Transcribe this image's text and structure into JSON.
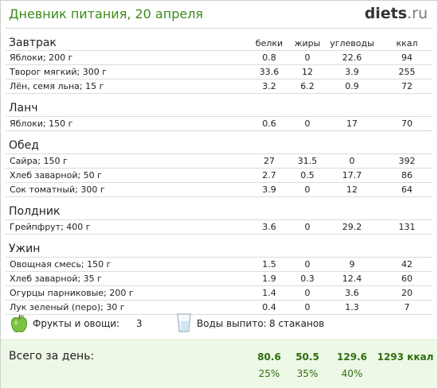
{
  "header": {
    "title": "Дневник питания, 20 апреля",
    "logo_main": "diets",
    "logo_tld": ".ru"
  },
  "columns": {
    "protein": "белки",
    "fat": "жиры",
    "carbs": "углеводы",
    "kcal": "ккал"
  },
  "meals": [
    {
      "name": "Завтрак",
      "items": [
        {
          "food": "Яблоки; 200 г",
          "protein": "0.8",
          "fat": "0",
          "carbs": "22.6",
          "kcal": "94"
        },
        {
          "food": "Творог мягкий; 300 г",
          "protein": "33.6",
          "fat": "12",
          "carbs": "3.9",
          "kcal": "255"
        },
        {
          "food": "Лён, семя льна; 15 г",
          "protein": "3.2",
          "fat": "6.2",
          "carbs": "0.9",
          "kcal": "72"
        }
      ]
    },
    {
      "name": "Ланч",
      "items": [
        {
          "food": "Яблоки; 150 г",
          "protein": "0.6",
          "fat": "0",
          "carbs": "17",
          "kcal": "70"
        }
      ]
    },
    {
      "name": "Обед",
      "items": [
        {
          "food": "Сайра; 150 г",
          "protein": "27",
          "fat": "31.5",
          "carbs": "0",
          "kcal": "392"
        },
        {
          "food": "Хлеб заварной; 50 г",
          "protein": "2.7",
          "fat": "0.5",
          "carbs": "17.7",
          "kcal": "86"
        },
        {
          "food": "Сок томатный; 300 г",
          "protein": "3.9",
          "fat": "0",
          "carbs": "12",
          "kcal": "64"
        }
      ]
    },
    {
      "name": "Полдник",
      "items": [
        {
          "food": "Грейпфрут; 400 г",
          "protein": "3.6",
          "fat": "0",
          "carbs": "29.2",
          "kcal": "131"
        }
      ]
    },
    {
      "name": "Ужин",
      "items": [
        {
          "food": "Овощная смесь; 150 г",
          "protein": "1.5",
          "fat": "0",
          "carbs": "9",
          "kcal": "42"
        },
        {
          "food": "Хлеб заварной; 35 г",
          "protein": "1.9",
          "fat": "0.3",
          "carbs": "12.4",
          "kcal": "60"
        },
        {
          "food": "Огурцы парниковые; 200 г",
          "protein": "1.4",
          "fat": "0",
          "carbs": "3.6",
          "kcal": "20"
        },
        {
          "food": "Лук зеленый (перо); 30 г",
          "protein": "0.4",
          "fat": "0",
          "carbs": "1.3",
          "kcal": "7"
        }
      ]
    }
  ],
  "extras": {
    "fruits_label": "Фрукты и овощи:",
    "fruits_value": "3",
    "water_label": "Воды выпито:",
    "water_value": "8 стаканов",
    "apple_icon": "apple-icon",
    "glass_icon": "water-glass-icon"
  },
  "totals": {
    "label": "Всего за день:",
    "protein": "80.6",
    "fat": "50.5",
    "carbs": "129.6",
    "kcal": "1293 ккал",
    "protein_pct": "25%",
    "fat_pct": "35%",
    "carbs_pct": "40%"
  },
  "colors": {
    "accent_green": "#3c8a1a",
    "totals_bg": "#eef8e6"
  }
}
